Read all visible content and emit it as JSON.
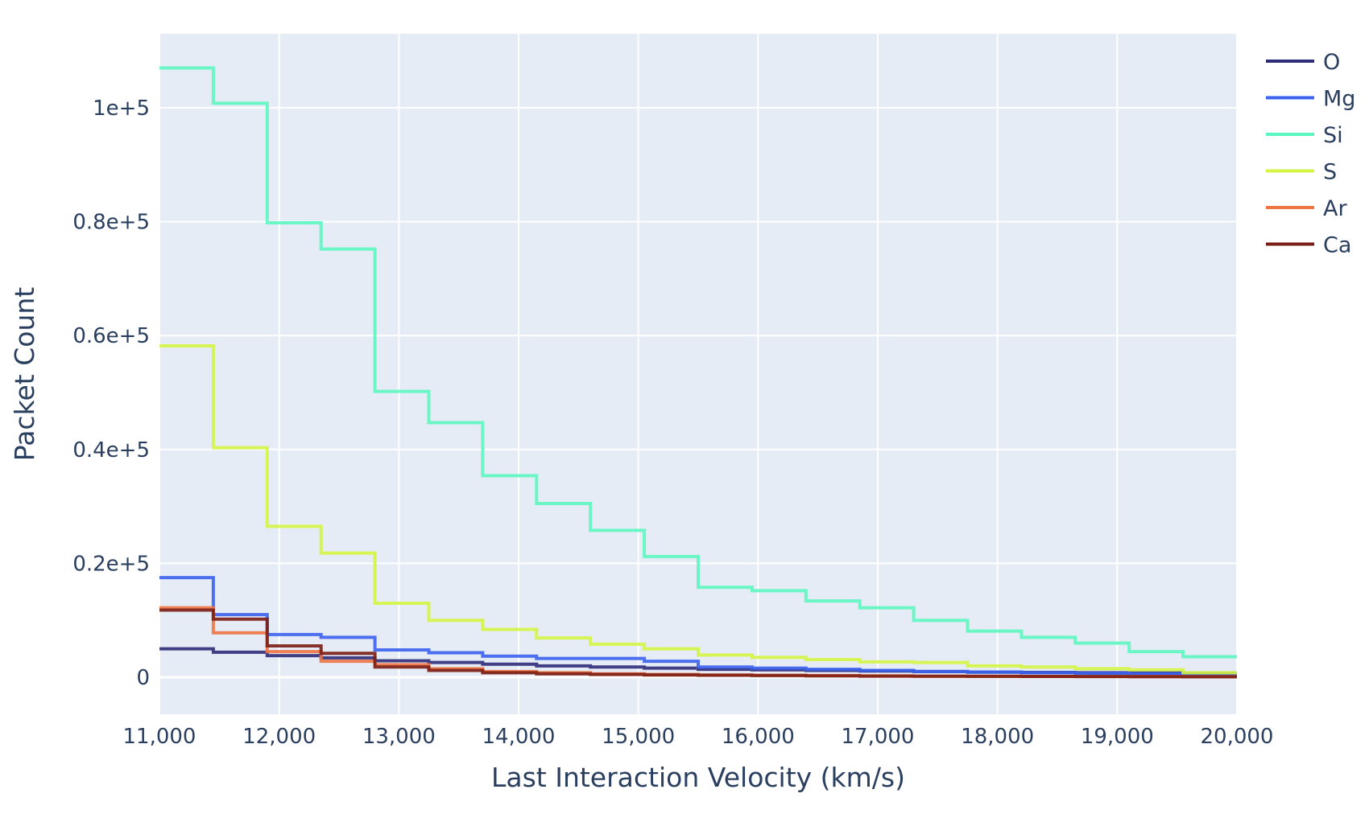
{
  "chart_data": {
    "type": "line",
    "line_shape": "step",
    "xlabel": "Last Interaction Velocity (km/s)",
    "ylabel": "Packet Count",
    "xlim": [
      11000,
      20000
    ],
    "ylim": [
      -6500,
      113000
    ],
    "x_ticks": [
      11000,
      12000,
      13000,
      14000,
      15000,
      16000,
      17000,
      18000,
      19000,
      20000
    ],
    "x_tick_labels": [
      "11,000",
      "12,000",
      "13,000",
      "14,000",
      "15,000",
      "16,000",
      "17,000",
      "18,000",
      "19,000",
      "20,000"
    ],
    "y_ticks": [
      0,
      20000,
      40000,
      60000,
      80000,
      100000
    ],
    "y_tick_labels": [
      "0",
      "0.2e+5",
      "0.4e+5",
      "0.6e+5",
      "0.8e+5",
      "1e+5"
    ],
    "grid": true,
    "legend_position": "top-right",
    "plot_background": "#e5ecf6",
    "bin_edges": [
      11000,
      11450,
      11900,
      12350,
      12800,
      13250,
      13700,
      14150,
      14600,
      15050,
      15500,
      15950,
      16400,
      16850,
      17300,
      17750,
      18200,
      18650,
      19100,
      19550,
      20000
    ],
    "series": [
      {
        "name": "O",
        "color": "#2e2b78",
        "values": [
          5000,
          4400,
          3800,
          3400,
          2900,
          2600,
          2300,
          2000,
          1800,
          1600,
          1400,
          1300,
          1200,
          1100,
          1000,
          900,
          850,
          800,
          750,
          700
        ]
      },
      {
        "name": "Mg",
        "color": "#3a62ee",
        "values": [
          17500,
          11000,
          7500,
          7000,
          4800,
          4300,
          3700,
          3300,
          3300,
          2800,
          1800,
          1600,
          1400,
          1200,
          1000,
          900,
          800,
          700,
          600,
          500
        ]
      },
      {
        "name": "Si",
        "color": "#5cf7c0",
        "values": [
          107000,
          100800,
          79800,
          75200,
          50200,
          44700,
          35400,
          30500,
          25800,
          21200,
          15800,
          15200,
          13400,
          12200,
          10000,
          8100,
          7000,
          6000,
          4500,
          3600
        ]
      },
      {
        "name": "S",
        "color": "#d4f542",
        "values": [
          58200,
          40300,
          26500,
          21800,
          13000,
          10000,
          8400,
          6900,
          5800,
          5000,
          3900,
          3500,
          3100,
          2700,
          2600,
          2000,
          1800,
          1500,
          1300,
          800
        ]
      },
      {
        "name": "Ar",
        "color": "#ee7442",
        "values": [
          12200,
          7800,
          4500,
          2800,
          2200,
          1500,
          1000,
          800,
          600,
          500,
          400,
          350,
          300,
          250,
          200,
          180,
          160,
          140,
          120,
          100
        ]
      },
      {
        "name": "Ca",
        "color": "#7a1d14",
        "values": [
          11800,
          10200,
          5500,
          4200,
          1800,
          1200,
          800,
          600,
          500,
          400,
          350,
          300,
          250,
          200,
          180,
          160,
          140,
          120,
          100,
          80
        ]
      }
    ]
  }
}
